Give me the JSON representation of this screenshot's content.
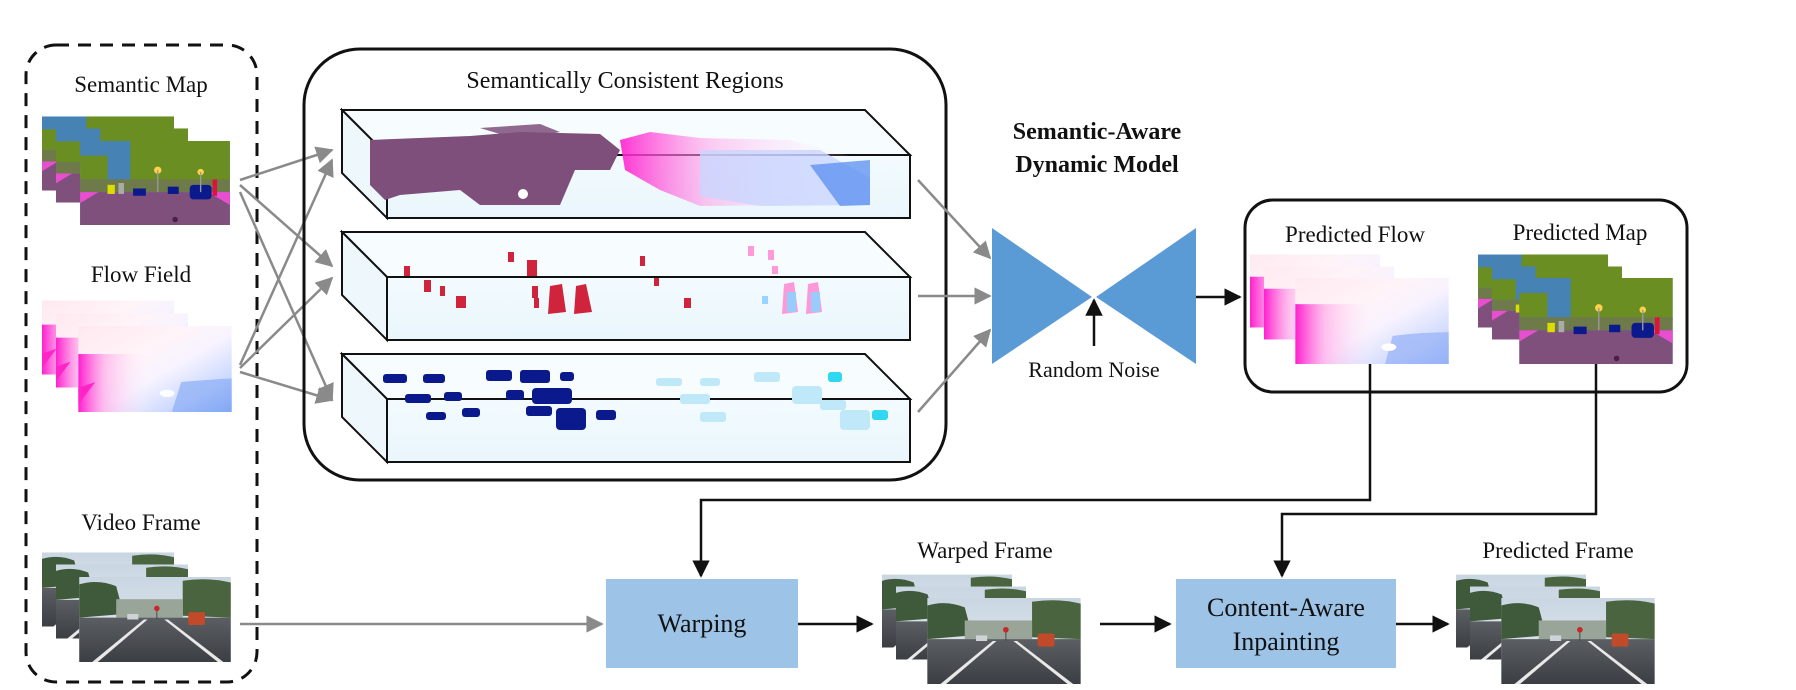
{
  "inputs": {
    "semantic_map_label": "Semantic Map",
    "flow_field_label": "Flow Field",
    "video_frame_label": "Video Frame"
  },
  "regions": {
    "title": "Semantically Consistent Regions"
  },
  "model": {
    "title_line1": "Semantic-Aware",
    "title_line2": "Dynamic Model",
    "noise_label": "Random Noise"
  },
  "predictions": {
    "flow_label": "Predicted Flow",
    "map_label": "Predicted Map"
  },
  "pipeline": {
    "warping_label": "Warping",
    "warped_frame_label": "Warped Frame",
    "inpainting_line1": "Content-Aware",
    "inpainting_line2": "Inpainting",
    "predicted_frame_label": "Predicted Frame"
  },
  "colors": {
    "model_blue": "#5b9bd5",
    "process_box": "#9dc3e6",
    "road_purple": "#80507d",
    "vegetation_green": "#6b8e23",
    "sky_blue": "#4682b4",
    "car_blue": "#0a1a8c",
    "person_red": "#dc143c",
    "arrow_gray": "#8a8a8a"
  }
}
